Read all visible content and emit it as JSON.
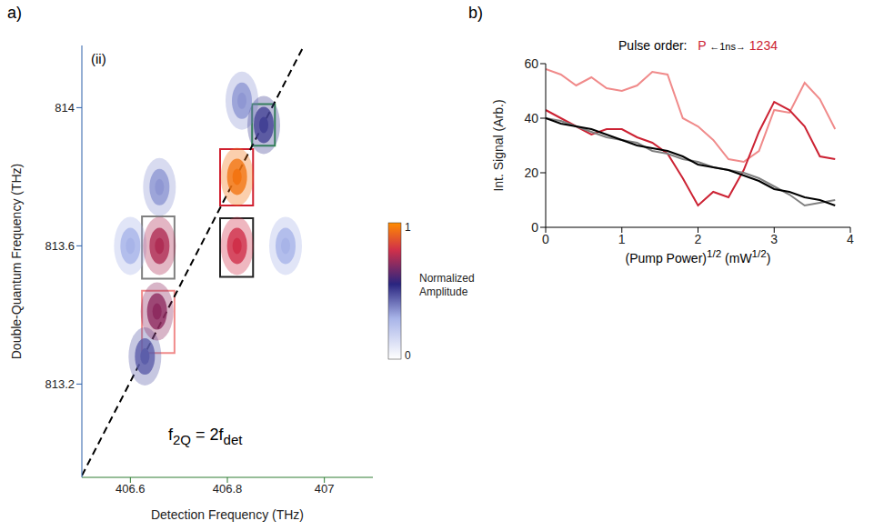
{
  "chart_data": [
    {
      "type": "2d_spectrum",
      "panel": "a)",
      "inset_label": "(ii)",
      "x_label": "Detection Frequency (THz)",
      "y_label": "Double-Quantum Frequency (THz)",
      "xlim": [
        406.5,
        407.1
      ],
      "xticks": [
        406.6,
        406.8,
        407
      ],
      "ylim": [
        812.93,
        814.18
      ],
      "yticks": [
        813.2,
        813.6,
        814
      ],
      "peaks": [
        {
          "x": 406.6,
          "y": 813.6,
          "value": 0.3
        },
        {
          "x": 406.92,
          "y": 813.6,
          "value": 0.3
        },
        {
          "x": 406.66,
          "y": 813.77,
          "value": 0.35
        },
        {
          "x": 406.83,
          "y": 814.02,
          "value": 0.35
        },
        {
          "x": 406.63,
          "y": 813.28,
          "value": 0.45
        },
        {
          "x": 406.875,
          "y": 813.95,
          "value": 0.5
        },
        {
          "x": 406.655,
          "y": 813.41,
          "value": 0.7
        },
        {
          "x": 406.66,
          "y": 813.6,
          "value": 0.75
        },
        {
          "x": 406.82,
          "y": 813.6,
          "value": 0.8
        },
        {
          "x": 406.82,
          "y": 813.8,
          "value": 0.95
        }
      ],
      "boxes": [
        {
          "x": [
            406.851,
            406.898
          ],
          "y": [
            813.89,
            814.01
          ],
          "color": "#2e9e3e"
        },
        {
          "x": [
            406.785,
            406.853
          ],
          "y": [
            813.717,
            813.88
          ],
          "color": "#d02030"
        },
        {
          "x": [
            406.785,
            406.853
          ],
          "y": [
            813.51,
            813.68
          ],
          "color": "#222222"
        },
        {
          "x": [
            406.624,
            406.691
          ],
          "y": [
            813.505,
            813.685
          ],
          "color": "#808080"
        },
        {
          "x": [
            406.624,
            406.691
          ],
          "y": [
            813.29,
            813.47
          ],
          "color": "#f08a8a"
        }
      ],
      "line": {
        "x": [
          406.5,
          406.958
        ],
        "y": [
          812.935,
          814.18
        ],
        "line_style": "dashed"
      },
      "line_label": [
        {
          "text": "f"
        },
        {
          "text": "2Q",
          "sub": true
        },
        {
          "text": " = 2f"
        },
        {
          "text": "det",
          "sub": true
        }
      ],
      "colorbar": {
        "label": "Normalized Amplitude",
        "range": [
          0,
          1
        ],
        "ticks": [
          0,
          1
        ]
      }
    },
    {
      "type": "line",
      "panel": "b)",
      "title": {
        "label": "Pulse order:",
        "pump": "P",
        "delay": "←1ns→",
        "probe": "1234"
      },
      "x_label": [
        {
          "text": "(Pump Power)"
        },
        {
          "text": "1/2",
          "sup": true
        },
        {
          "text": " (mW"
        },
        {
          "text": "1/2",
          "sup": true
        },
        {
          "text": ")"
        }
      ],
      "y_label": "Int. Signal (Arb.)",
      "xlim": [
        0,
        4
      ],
      "xticks": [
        0,
        1,
        2,
        3,
        4
      ],
      "ylim": [
        0,
        60
      ],
      "yticks": [
        0,
        20,
        40,
        60
      ],
      "x": [
        0,
        0.2,
        0.4,
        0.6,
        0.8,
        1.0,
        1.2,
        1.4,
        1.6,
        1.8,
        2.0,
        2.2,
        2.4,
        2.6,
        2.8,
        3.0,
        3.2,
        3.4,
        3.6,
        3.8
      ],
      "series": [
        {
          "color": "#f08a8a",
          "values": [
            58,
            56,
            52,
            55,
            51,
            50,
            52,
            57,
            56,
            40,
            37,
            32,
            25,
            24,
            28,
            43,
            42,
            53,
            47,
            36
          ]
        },
        {
          "color": "#cc2233",
          "values": [
            43,
            40,
            37,
            34,
            36,
            36,
            33,
            31,
            27,
            18,
            8,
            13,
            11,
            21,
            35,
            46,
            43,
            37,
            26,
            25
          ]
        },
        {
          "color": "#808080",
          "values": [
            40,
            39,
            37,
            35,
            33,
            32,
            31,
            28,
            27,
            25,
            24,
            22,
            21,
            20,
            18,
            15,
            12,
            8,
            9,
            10
          ]
        },
        {
          "color": "#000000",
          "values": [
            40,
            38,
            37,
            36,
            34,
            32,
            30,
            29,
            28,
            26,
            23,
            22,
            21,
            19,
            17,
            14,
            13,
            11,
            10,
            8
          ]
        }
      ]
    }
  ]
}
